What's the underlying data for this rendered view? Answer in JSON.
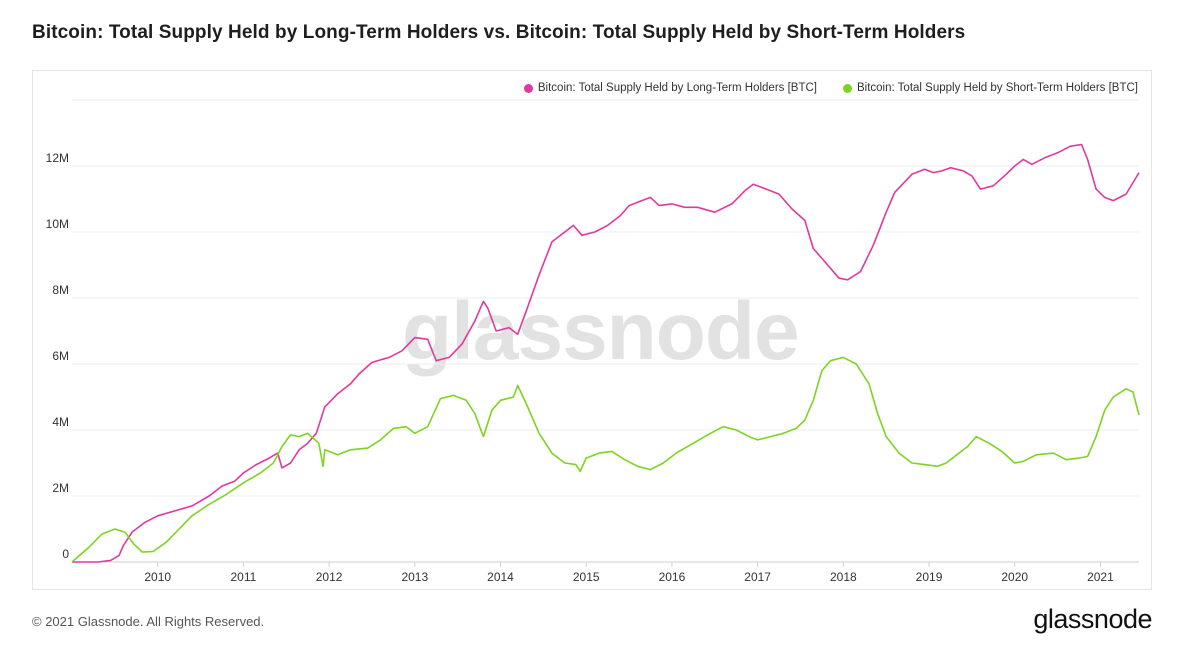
{
  "header": {
    "title": "Bitcoin: Total Supply Held by Long-Term Holders vs. Bitcoin: Total Supply Held by Short-Term Holders"
  },
  "watermark": "glassnode",
  "footer": {
    "copyright": "© 2021 Glassnode. All Rights Reserved.",
    "brand": "glassnode"
  },
  "chart_data": {
    "type": "line",
    "title": "Bitcoin: Total Supply Held by Long-Term Holders vs. Bitcoin: Total Supply Held by Short-Term Holders",
    "xlabel": "",
    "ylabel": "",
    "grid": true,
    "legend_position": "top-right",
    "xlim": [
      2009.0,
      2021.45
    ],
    "ylim": [
      0,
      14000000
    ],
    "x_ticks": [
      {
        "value": 2010.0,
        "label": "2010"
      },
      {
        "value": 2011.0,
        "label": "2011"
      },
      {
        "value": 2012.0,
        "label": "2012"
      },
      {
        "value": 2013.0,
        "label": "2013"
      },
      {
        "value": 2014.0,
        "label": "2014"
      },
      {
        "value": 2015.0,
        "label": "2015"
      },
      {
        "value": 2016.0,
        "label": "2016"
      },
      {
        "value": 2017.0,
        "label": "2017"
      },
      {
        "value": 2018.0,
        "label": "2018"
      },
      {
        "value": 2019.0,
        "label": "2019"
      },
      {
        "value": 2020.0,
        "label": "2020"
      },
      {
        "value": 2021.0,
        "label": "2021"
      }
    ],
    "y_ticks": [
      {
        "value": 0,
        "label": "0"
      },
      {
        "value": 2000000,
        "label": "2M"
      },
      {
        "value": 4000000,
        "label": "4M"
      },
      {
        "value": 6000000,
        "label": "6M"
      },
      {
        "value": 8000000,
        "label": "8M"
      },
      {
        "value": 10000000,
        "label": "10M"
      },
      {
        "value": 12000000,
        "label": "12M"
      }
    ],
    "series": [
      {
        "name": "Bitcoin: Total Supply Held by Long-Term Holders [BTC]",
        "color": "#e0399e",
        "points": [
          [
            2009.0,
            0
          ],
          [
            2009.3,
            0
          ],
          [
            2009.45,
            50000
          ],
          [
            2009.55,
            200000
          ],
          [
            2009.6,
            500000
          ],
          [
            2009.7,
            900000
          ],
          [
            2009.85,
            1200000
          ],
          [
            2010.0,
            1400000
          ],
          [
            2010.2,
            1550000
          ],
          [
            2010.4,
            1700000
          ],
          [
            2010.6,
            2000000
          ],
          [
            2010.75,
            2300000
          ],
          [
            2010.9,
            2450000
          ],
          [
            2011.0,
            2700000
          ],
          [
            2011.15,
            2950000
          ],
          [
            2011.3,
            3150000
          ],
          [
            2011.4,
            3300000
          ],
          [
            2011.45,
            2850000
          ],
          [
            2011.55,
            3000000
          ],
          [
            2011.65,
            3400000
          ],
          [
            2011.75,
            3600000
          ],
          [
            2011.85,
            3900000
          ],
          [
            2011.95,
            4700000
          ],
          [
            2012.1,
            5100000
          ],
          [
            2012.25,
            5400000
          ],
          [
            2012.35,
            5700000
          ],
          [
            2012.5,
            6050000
          ],
          [
            2012.7,
            6200000
          ],
          [
            2012.85,
            6400000
          ],
          [
            2013.0,
            6800000
          ],
          [
            2013.15,
            6750000
          ],
          [
            2013.25,
            6100000
          ],
          [
            2013.4,
            6200000
          ],
          [
            2013.55,
            6600000
          ],
          [
            2013.7,
            7300000
          ],
          [
            2013.8,
            7900000
          ],
          [
            2013.85,
            7700000
          ],
          [
            2013.95,
            7000000
          ],
          [
            2014.1,
            7100000
          ],
          [
            2014.2,
            6900000
          ],
          [
            2014.3,
            7600000
          ],
          [
            2014.45,
            8700000
          ],
          [
            2014.6,
            9700000
          ],
          [
            2014.75,
            10000000
          ],
          [
            2014.85,
            10200000
          ],
          [
            2014.95,
            9900000
          ],
          [
            2015.1,
            10000000
          ],
          [
            2015.25,
            10200000
          ],
          [
            2015.4,
            10500000
          ],
          [
            2015.5,
            10800000
          ],
          [
            2015.6,
            10900000
          ],
          [
            2015.75,
            11050000
          ],
          [
            2015.85,
            10800000
          ],
          [
            2016.0,
            10850000
          ],
          [
            2016.15,
            10750000
          ],
          [
            2016.3,
            10750000
          ],
          [
            2016.5,
            10600000
          ],
          [
            2016.7,
            10850000
          ],
          [
            2016.85,
            11250000
          ],
          [
            2016.95,
            11450000
          ],
          [
            2017.1,
            11300000
          ],
          [
            2017.25,
            11150000
          ],
          [
            2017.4,
            10700000
          ],
          [
            2017.55,
            10350000
          ],
          [
            2017.65,
            9500000
          ],
          [
            2017.75,
            9200000
          ],
          [
            2017.85,
            8900000
          ],
          [
            2017.95,
            8600000
          ],
          [
            2018.05,
            8550000
          ],
          [
            2018.2,
            8800000
          ],
          [
            2018.35,
            9600000
          ],
          [
            2018.5,
            10600000
          ],
          [
            2018.6,
            11200000
          ],
          [
            2018.8,
            11750000
          ],
          [
            2018.95,
            11900000
          ],
          [
            2019.05,
            11800000
          ],
          [
            2019.15,
            11850000
          ],
          [
            2019.25,
            11950000
          ],
          [
            2019.4,
            11850000
          ],
          [
            2019.5,
            11700000
          ],
          [
            2019.6,
            11300000
          ],
          [
            2019.75,
            11400000
          ],
          [
            2019.9,
            11750000
          ],
          [
            2020.0,
            12000000
          ],
          [
            2020.1,
            12200000
          ],
          [
            2020.2,
            12050000
          ],
          [
            2020.35,
            12250000
          ],
          [
            2020.5,
            12400000
          ],
          [
            2020.65,
            12600000
          ],
          [
            2020.78,
            12650000
          ],
          [
            2020.85,
            12200000
          ],
          [
            2020.95,
            11300000
          ],
          [
            2021.05,
            11050000
          ],
          [
            2021.15,
            10950000
          ],
          [
            2021.3,
            11150000
          ],
          [
            2021.45,
            11800000
          ]
        ]
      },
      {
        "name": "Bitcoin: Total Supply Held by Short-Term Holders [BTC]",
        "color": "#7ed321",
        "points": [
          [
            2009.0,
            0
          ],
          [
            2009.2,
            450000
          ],
          [
            2009.35,
            850000
          ],
          [
            2009.5,
            1000000
          ],
          [
            2009.62,
            900000
          ],
          [
            2009.72,
            550000
          ],
          [
            2009.82,
            300000
          ],
          [
            2009.95,
            320000
          ],
          [
            2010.1,
            600000
          ],
          [
            2010.25,
            1000000
          ],
          [
            2010.4,
            1400000
          ],
          [
            2010.6,
            1750000
          ],
          [
            2010.8,
            2050000
          ],
          [
            2011.0,
            2400000
          ],
          [
            2011.2,
            2700000
          ],
          [
            2011.35,
            3000000
          ],
          [
            2011.45,
            3500000
          ],
          [
            2011.55,
            3850000
          ],
          [
            2011.65,
            3800000
          ],
          [
            2011.75,
            3900000
          ],
          [
            2011.88,
            3600000
          ],
          [
            2011.93,
            2900000
          ],
          [
            2011.95,
            3400000
          ],
          [
            2012.1,
            3250000
          ],
          [
            2012.25,
            3400000
          ],
          [
            2012.45,
            3450000
          ],
          [
            2012.6,
            3700000
          ],
          [
            2012.75,
            4050000
          ],
          [
            2012.9,
            4100000
          ],
          [
            2013.0,
            3900000
          ],
          [
            2013.15,
            4100000
          ],
          [
            2013.3,
            4950000
          ],
          [
            2013.45,
            5050000
          ],
          [
            2013.6,
            4900000
          ],
          [
            2013.7,
            4500000
          ],
          [
            2013.8,
            3800000
          ],
          [
            2013.9,
            4600000
          ],
          [
            2014.0,
            4900000
          ],
          [
            2014.15,
            5000000
          ],
          [
            2014.2,
            5350000
          ],
          [
            2014.3,
            4800000
          ],
          [
            2014.45,
            3900000
          ],
          [
            2014.6,
            3300000
          ],
          [
            2014.75,
            3000000
          ],
          [
            2014.88,
            2950000
          ],
          [
            2014.93,
            2750000
          ],
          [
            2015.0,
            3150000
          ],
          [
            2015.15,
            3300000
          ],
          [
            2015.3,
            3350000
          ],
          [
            2015.45,
            3100000
          ],
          [
            2015.6,
            2900000
          ],
          [
            2015.75,
            2800000
          ],
          [
            2015.9,
            3000000
          ],
          [
            2016.05,
            3300000
          ],
          [
            2016.25,
            3600000
          ],
          [
            2016.45,
            3900000
          ],
          [
            2016.6,
            4100000
          ],
          [
            2016.75,
            4000000
          ],
          [
            2016.9,
            3800000
          ],
          [
            2017.0,
            3700000
          ],
          [
            2017.15,
            3800000
          ],
          [
            2017.3,
            3900000
          ],
          [
            2017.45,
            4050000
          ],
          [
            2017.55,
            4300000
          ],
          [
            2017.65,
            4900000
          ],
          [
            2017.75,
            5800000
          ],
          [
            2017.85,
            6100000
          ],
          [
            2018.0,
            6200000
          ],
          [
            2018.15,
            6000000
          ],
          [
            2018.3,
            5400000
          ],
          [
            2018.4,
            4500000
          ],
          [
            2018.5,
            3800000
          ],
          [
            2018.65,
            3300000
          ],
          [
            2018.8,
            3000000
          ],
          [
            2018.95,
            2950000
          ],
          [
            2019.1,
            2900000
          ],
          [
            2019.2,
            3000000
          ],
          [
            2019.35,
            3300000
          ],
          [
            2019.45,
            3500000
          ],
          [
            2019.55,
            3800000
          ],
          [
            2019.7,
            3600000
          ],
          [
            2019.85,
            3350000
          ],
          [
            2020.0,
            3000000
          ],
          [
            2020.1,
            3050000
          ],
          [
            2020.25,
            3250000
          ],
          [
            2020.45,
            3300000
          ],
          [
            2020.6,
            3100000
          ],
          [
            2020.75,
            3150000
          ],
          [
            2020.85,
            3200000
          ],
          [
            2020.95,
            3800000
          ],
          [
            2021.05,
            4600000
          ],
          [
            2021.15,
            5000000
          ],
          [
            2021.3,
            5250000
          ],
          [
            2021.38,
            5150000
          ],
          [
            2021.45,
            4450000
          ]
        ]
      }
    ]
  }
}
